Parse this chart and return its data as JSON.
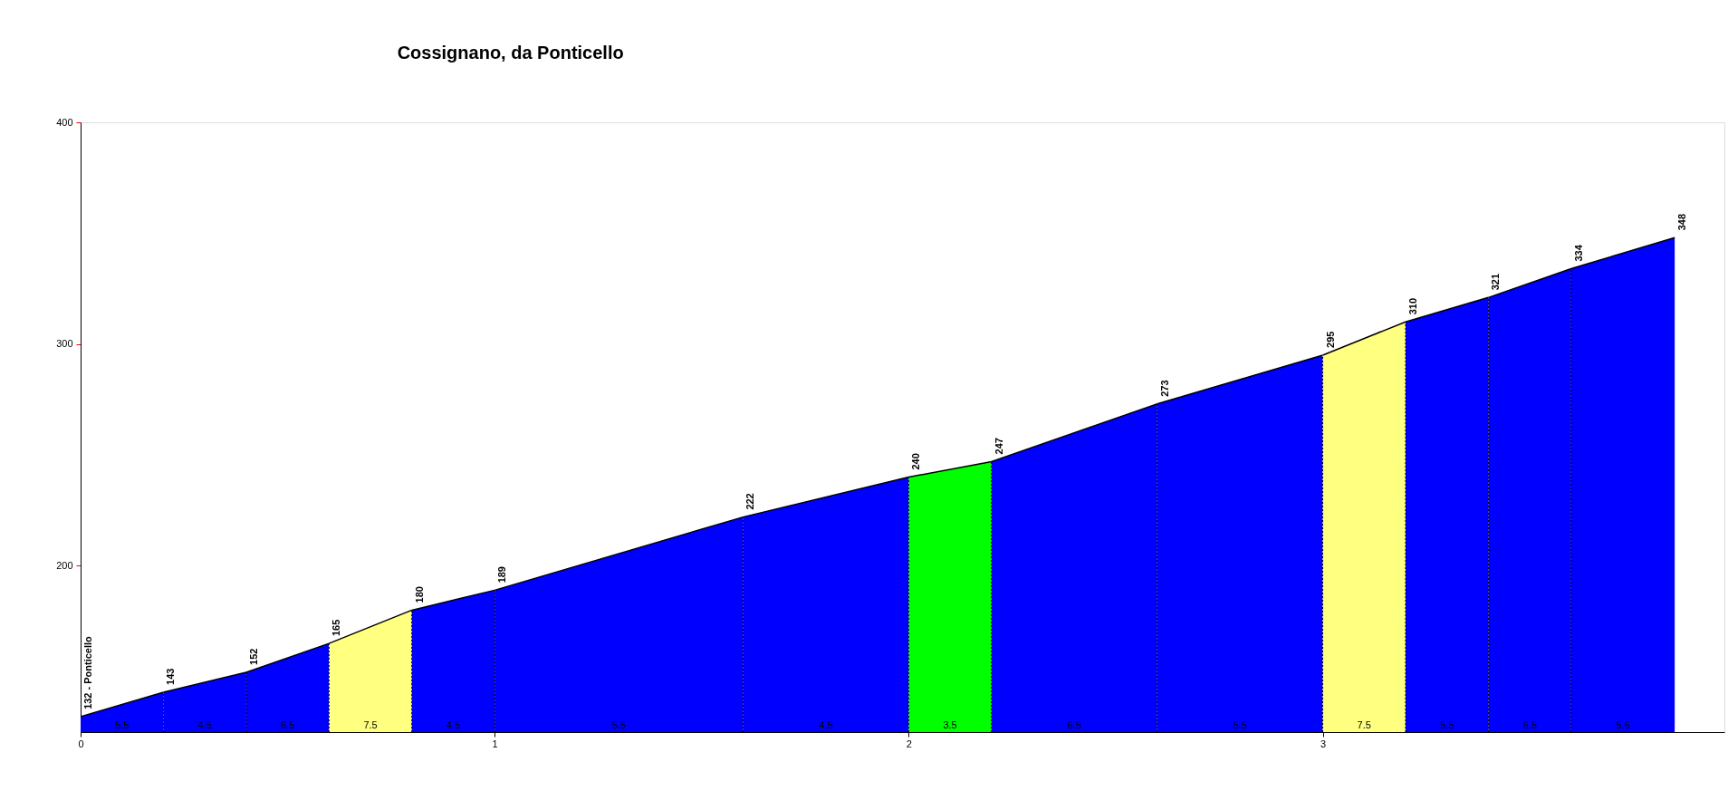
{
  "chart_data": {
    "type": "area",
    "title": "Cossignano, da Ponticello",
    "xlim": [
      0,
      3.97
    ],
    "xticks": [
      0,
      1,
      2,
      3
    ],
    "ylim": [
      125,
      400
    ],
    "yticks": [
      200,
      300,
      400
    ],
    "grid": false,
    "series": [
      {
        "x": [
          0,
          0.2
        ],
        "values": [
          132,
          143
        ],
        "color": "#0000ff",
        "value_labels": [
          "132 - Ponticello",
          "143"
        ]
      },
      {
        "x": [
          0.2,
          0.4
        ],
        "values": [
          143,
          152
        ],
        "color": "#0000ff",
        "value_labels": [
          null,
          "152"
        ]
      },
      {
        "x": [
          0.4,
          0.6
        ],
        "values": [
          152,
          165
        ],
        "color": "#0000ff",
        "value_labels": [
          null,
          "165"
        ]
      },
      {
        "x": [
          0.6,
          0.8
        ],
        "values": [
          165,
          180
        ],
        "color": "#ffff80",
        "value_labels": [
          null,
          "180"
        ]
      },
      {
        "x": [
          0.8,
          1.0
        ],
        "values": [
          180,
          189
        ],
        "color": "#0000ff",
        "value_labels": [
          null,
          "189"
        ]
      },
      {
        "x": [
          1.0,
          1.6
        ],
        "values": [
          189,
          222
        ],
        "color": "#0000ff",
        "value_labels": [
          null,
          "222"
        ]
      },
      {
        "x": [
          1.6,
          2.0
        ],
        "values": [
          222,
          240
        ],
        "color": "#0000ff",
        "value_labels": [
          null,
          "240"
        ]
      },
      {
        "x": [
          2.0,
          2.2
        ],
        "values": [
          240,
          247
        ],
        "color": "#00ff00",
        "value_labels": [
          null,
          "247"
        ]
      },
      {
        "x": [
          2.2,
          2.6
        ],
        "values": [
          247,
          273
        ],
        "color": "#0000ff",
        "value_labels": [
          null,
          "273"
        ]
      },
      {
        "x": [
          2.6,
          3.0
        ],
        "values": [
          273,
          295
        ],
        "color": "#0000ff",
        "value_labels": [
          null,
          "295"
        ]
      },
      {
        "x": [
          3.0,
          3.2
        ],
        "values": [
          295,
          310
        ],
        "color": "#ffff80",
        "value_labels": [
          null,
          "310"
        ]
      },
      {
        "x": [
          3.2,
          3.4
        ],
        "values": [
          310,
          321
        ],
        "color": "#0000ff",
        "value_labels": [
          null,
          "321"
        ]
      },
      {
        "x": [
          3.4,
          3.6
        ],
        "values": [
          321,
          334
        ],
        "color": "#0000ff",
        "value_labels": [
          null,
          "334"
        ]
      },
      {
        "x": [
          3.6,
          3.85
        ],
        "values": [
          334,
          348
        ],
        "color": "#0000ff",
        "value_labels": [
          null,
          "348"
        ]
      }
    ],
    "annotations": [
      "5.5",
      "4.5",
      "6.5",
      "7.5",
      "4.5",
      "5.5",
      "4.5",
      "3.5",
      "6.5",
      "5.5",
      "7.5",
      "5.5",
      "6.5",
      "5.6"
    ]
  }
}
